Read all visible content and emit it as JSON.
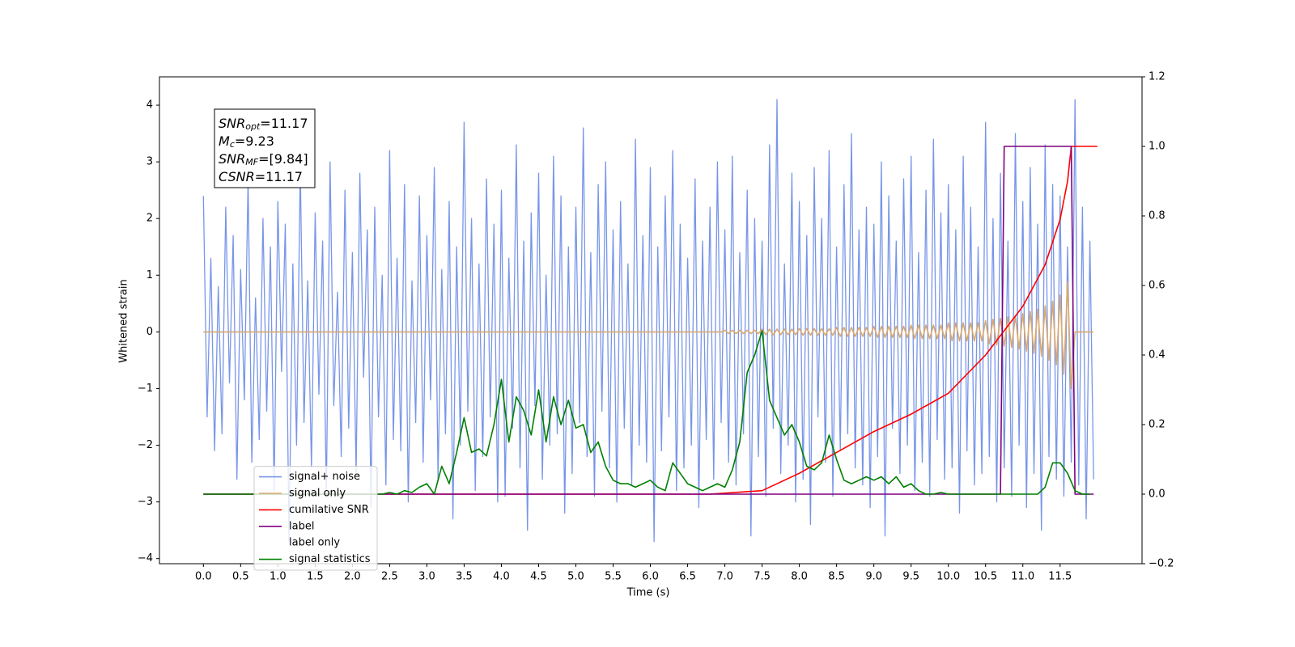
{
  "chart_data": {
    "type": "line",
    "xlabel": "Time (s)",
    "ylabel": "Whitened strain",
    "xlim": [
      -0.59,
      12.6
    ],
    "ylim": [
      -4.09,
      4.5
    ],
    "y2lim": [
      -0.2,
      1.2
    ],
    "xticks": [
      {
        "value": 0,
        "label": "0.0"
      },
      {
        "value": 0.5,
        "label": "0.5"
      },
      {
        "value": 1,
        "label": "1.0"
      },
      {
        "value": 1.5,
        "label": "1.5"
      },
      {
        "value": 2,
        "label": "2.0"
      },
      {
        "value": 2.5,
        "label": "2.5"
      },
      {
        "value": 3,
        "label": "3.0"
      },
      {
        "value": 3.5,
        "label": "3.5"
      },
      {
        "value": 4,
        "label": "4.0"
      },
      {
        "value": 4.5,
        "label": "4.5"
      },
      {
        "value": 5,
        "label": "5.0"
      },
      {
        "value": 5.5,
        "label": "5.5"
      },
      {
        "value": 6,
        "label": "6.0"
      },
      {
        "value": 6.5,
        "label": "6.5"
      },
      {
        "value": 7,
        "label": "7.0"
      },
      {
        "value": 7.5,
        "label": "7.5"
      },
      {
        "value": 8,
        "label": "8.0"
      },
      {
        "value": 8.5,
        "label": "8.5"
      },
      {
        "value": 9,
        "label": "9.0"
      },
      {
        "value": 9.5,
        "label": "9.5"
      },
      {
        "value": 10,
        "label": "10.0"
      },
      {
        "value": 10.5,
        "label": "10.5"
      },
      {
        "value": 11,
        "label": "11.0"
      },
      {
        "value": 11.5,
        "label": "11.5"
      }
    ],
    "yticks": [
      {
        "value": -4,
        "label": "−4"
      },
      {
        "value": -3,
        "label": "−3"
      },
      {
        "value": -2,
        "label": "−2"
      },
      {
        "value": -1,
        "label": "−1"
      },
      0,
      1,
      2,
      3,
      4
    ],
    "y2ticks": [
      {
        "value": -0.2,
        "label": "−0.2"
      },
      {
        "value": 0,
        "label": "0.0"
      },
      {
        "value": 0.2,
        "label": "0.2"
      },
      {
        "value": 0.4,
        "label": "0.4"
      },
      {
        "value": 0.6,
        "label": "0.6"
      },
      {
        "value": 0.8,
        "label": "0.8"
      },
      {
        "value": 1,
        "label": "1.0"
      },
      {
        "value": 1.2,
        "label": "1.2"
      }
    ],
    "legend": "lower left",
    "annotation": [
      {
        "name": "SNR",
        "sub": "opt",
        "text": "=11.17"
      },
      {
        "name": "M",
        "sub": "c",
        "text": "=9.23"
      },
      {
        "name": "SNR",
        "sub": "MF",
        "text": "=[9.84]"
      },
      {
        "name": "CSNR",
        "text": "=11.17"
      }
    ],
    "x": [
      0,
      0.05,
      0.1,
      0.15,
      0.2,
      0.25,
      0.3,
      0.35,
      0.4,
      0.45,
      0.5,
      0.55,
      0.6,
      0.65,
      0.7,
      0.75,
      0.8,
      0.85,
      0.9,
      0.95,
      1,
      1.05,
      1.1,
      1.15,
      1.2,
      1.25,
      1.3,
      1.35,
      1.4,
      1.45,
      1.5,
      1.55,
      1.6,
      1.65,
      1.7,
      1.75,
      1.8,
      1.85,
      1.9,
      1.95,
      2,
      2.05,
      2.1,
      2.15,
      2.2,
      2.25,
      2.3,
      2.35,
      2.4,
      2.45,
      2.5,
      2.55,
      2.6,
      2.65,
      2.7,
      2.75,
      2.8,
      2.85,
      2.9,
      2.95,
      3,
      3.05,
      3.1,
      3.15,
      3.2,
      3.25,
      3.3,
      3.35,
      3.4,
      3.45,
      3.5,
      3.55,
      3.6,
      3.65,
      3.7,
      3.75,
      3.8,
      3.85,
      3.9,
      3.95,
      4,
      4.05,
      4.1,
      4.15,
      4.2,
      4.25,
      4.3,
      4.35,
      4.4,
      4.45,
      4.5,
      4.55,
      4.6,
      4.65,
      4.7,
      4.75,
      4.8,
      4.85,
      4.9,
      4.95,
      5,
      5.05,
      5.1,
      5.15,
      5.2,
      5.25,
      5.3,
      5.35,
      5.4,
      5.45,
      5.5,
      5.55,
      5.6,
      5.65,
      5.7,
      5.75,
      5.8,
      5.85,
      5.9,
      5.95,
      6,
      6.05,
      6.1,
      6.15,
      6.2,
      6.25,
      6.3,
      6.35,
      6.4,
      6.45,
      6.5,
      6.55,
      6.6,
      6.65,
      6.7,
      6.75,
      6.8,
      6.85,
      6.9,
      6.95,
      7,
      7.05,
      7.1,
      7.15,
      7.2,
      7.25,
      7.3,
      7.35,
      7.4,
      7.45,
      7.5,
      7.55,
      7.6,
      7.65,
      7.7,
      7.75,
      7.8,
      7.85,
      7.9,
      7.95,
      8,
      8.05,
      8.1,
      8.15,
      8.2,
      8.25,
      8.3,
      8.35,
      8.4,
      8.45,
      8.5,
      8.55,
      8.6,
      8.65,
      8.7,
      8.75,
      8.8,
      8.85,
      8.9,
      8.95,
      9,
      9.05,
      9.1,
      9.15,
      9.2,
      9.25,
      9.3,
      9.35,
      9.4,
      9.45,
      9.5,
      9.55,
      9.6,
      9.65,
      9.7,
      9.75,
      9.8,
      9.85,
      9.9,
      9.95,
      10,
      10.05,
      10.1,
      10.15,
      10.2,
      10.25,
      10.3,
      10.35,
      10.4,
      10.45,
      10.5,
      10.55,
      10.6,
      10.65,
      10.7,
      10.75,
      10.8,
      10.85,
      10.9,
      10.95,
      11,
      11.05,
      11.1,
      11.15,
      11.2,
      11.25,
      11.3,
      11.35,
      11.4,
      11.45,
      11.5,
      11.55,
      11.6,
      11.65,
      11.7,
      11.75,
      11.8,
      11.85,
      11.9,
      11.95
    ],
    "series": [
      {
        "name": "signal+ noise",
        "color": "#7895e8",
        "values": [
          2.4,
          -1.5,
          1.3,
          -2.1,
          0.8,
          -1.8,
          2.2,
          -0.9,
          1.7,
          -2.6,
          1.1,
          -1.2,
          2.7,
          -2.3,
          0.6,
          -1.9,
          2.0,
          -1.4,
          1.5,
          -2.8,
          2.3,
          -0.7,
          1.9,
          -3.7,
          1.2,
          -2.0,
          2.9,
          -1.6,
          0.9,
          -2.4,
          2.1,
          -1.1,
          1.6,
          -2.9,
          3.0,
          -1.3,
          0.7,
          -2.2,
          2.5,
          -1.7,
          1.4,
          -2.5,
          2.8,
          -0.8,
          1.8,
          -3.1,
          2.2,
          -1.5,
          1.0,
          -2.7,
          3.2,
          -1.9,
          1.3,
          -2.1,
          2.6,
          -3.0,
          0.9,
          -1.6,
          2.4,
          -2.3,
          1.7,
          -1.2,
          2.9,
          -2.6,
          1.1,
          -1.8,
          2.3,
          -3.3,
          1.5,
          -2.0,
          3.7,
          -1.4,
          2.0,
          -2.8,
          1.2,
          -2.2,
          2.7,
          -1.5,
          1.9,
          -3.0,
          2.5,
          -2.9,
          1.3,
          -1.7,
          3.3,
          -2.4,
          1.6,
          -3.5,
          2.1,
          -1.3,
          2.8,
          -2.6,
          1.0,
          -2.0,
          3.1,
          -1.8,
          2.4,
          -3.2,
          1.5,
          -2.5,
          2.2,
          -1.6,
          3.6,
          -2.2,
          1.4,
          -2.9,
          2.6,
          -1.4,
          3.0,
          -2.4,
          1.8,
          -3.0,
          2.3,
          -1.7,
          1.2,
          -2.7,
          3.4,
          -2.0,
          1.7,
          -2.3,
          2.9,
          -3.7,
          1.5,
          -2.1,
          2.4,
          -1.5,
          3.2,
          -2.8,
          1.9,
          -2.4,
          1.3,
          -2.0,
          2.7,
          -3.1,
          1.6,
          -1.9,
          2.2,
          -2.6,
          3.0,
          -1.6,
          1.8,
          -2.3,
          3.1,
          -2.7,
          1.4,
          -1.8,
          2.5,
          -3.6,
          2.0,
          -2.2,
          1.6,
          -2.9,
          3.3,
          -1.7,
          4.1,
          -2.5,
          1.2,
          -2.0,
          2.8,
          -3.0,
          2.3,
          -2.6,
          1.7,
          -3.4,
          2.9,
          -1.5,
          2.0,
          -2.3,
          3.2,
          -2.9,
          1.5,
          -2.1,
          2.6,
          -1.8,
          3.5,
          -2.4,
          1.8,
          -2.7,
          2.2,
          -3.1,
          1.9,
          -2.2,
          3.0,
          -3.6,
          2.4,
          -1.7,
          1.6,
          -2.5,
          2.7,
          -2.0,
          3.1,
          -2.8,
          1.4,
          -2.3,
          2.5,
          -2.9,
          3.4,
          -1.9,
          2.1,
          -2.6,
          2.6,
          -2.4,
          1.8,
          -3.2,
          3.1,
          -2.1,
          2.2,
          -2.7,
          1.5,
          -2.5,
          3.7,
          -2.2,
          2.0,
          -3.0,
          2.8,
          -2.4,
          1.6,
          -2.9,
          3.5,
          -2.0,
          2.3,
          -3.1,
          2.9,
          -2.5,
          1.9,
          -3.5,
          3.3,
          -2.2,
          2.6,
          -2.6,
          2.4,
          -2.9,
          1.5,
          -2.3,
          4.1,
          -2.7,
          2.2,
          -3.3,
          1.6,
          -2.6
        ]
      },
      {
        "name": "signal only",
        "color": "#d9a86f",
        "values": [
          0,
          0,
          0,
          0,
          0,
          0,
          0,
          0,
          0,
          0,
          0,
          0,
          0,
          0,
          0,
          0,
          0,
          0,
          0,
          0,
          0,
          0,
          0,
          0,
          0,
          0,
          0,
          0,
          0,
          0,
          0,
          0,
          0,
          0,
          0,
          0,
          0,
          0,
          0,
          0,
          0,
          0,
          0,
          0,
          0,
          0,
          0,
          0,
          0,
          0,
          0,
          0,
          0,
          0,
          0,
          0,
          0,
          0,
          0,
          0,
          0,
          0,
          0,
          0,
          0,
          0,
          0,
          0,
          0,
          0,
          0,
          0,
          0,
          0,
          0,
          0,
          0,
          0,
          0,
          0,
          0,
          0,
          0,
          0,
          0,
          0,
          0,
          0,
          0,
          0,
          0,
          0,
          0,
          0,
          0,
          0,
          0,
          0,
          0,
          0,
          0,
          0,
          0,
          0,
          0,
          0,
          0,
          0,
          0,
          0,
          0,
          0,
          0,
          0,
          0,
          0,
          0,
          0,
          0,
          0,
          0,
          0,
          0,
          0,
          0,
          0,
          0,
          0,
          0,
          0,
          0,
          0,
          0,
          0,
          0,
          0,
          0,
          0,
          0,
          0,
          0.03,
          -0.03,
          0.03,
          -0.03,
          0.03,
          -0.03,
          0.03,
          -0.03,
          0.03,
          -0.03,
          0.05,
          -0.05,
          0.05,
          -0.05,
          0.05,
          -0.05,
          0.05,
          -0.05,
          0.05,
          -0.05,
          0.06,
          -0.06,
          0.06,
          -0.06,
          0.06,
          -0.06,
          0.06,
          -0.06,
          0.06,
          -0.06,
          0.08,
          -0.08,
          0.08,
          -0.08,
          0.08,
          -0.08,
          0.08,
          -0.08,
          0.08,
          -0.08,
          0.1,
          -0.1,
          0.1,
          -0.1,
          0.1,
          -0.1,
          0.1,
          -0.1,
          0.1,
          -0.1,
          0.12,
          -0.12,
          0.12,
          -0.12,
          0.12,
          -0.12,
          0.12,
          -0.12,
          0.12,
          -0.12,
          0.16,
          -0.16,
          0.16,
          -0.16,
          0.16,
          -0.16,
          0.16,
          -0.16,
          0.16,
          -0.16,
          0.2,
          -0.21,
          0.22,
          -0.23,
          0.24,
          -0.25,
          0.26,
          -0.27,
          0.28,
          -0.3,
          0.32,
          -0.34,
          0.36,
          -0.38,
          0.4,
          -0.43,
          0.46,
          -0.5,
          0.54,
          -0.58,
          0.65,
          -0.75,
          0.88,
          -1.0,
          0,
          0,
          0,
          0,
          0,
          0
        ]
      },
      {
        "name": "cumilative SNR",
        "color": "#ff0000",
        "axis": "y2",
        "x": [
          0,
          6.8,
          7.5,
          8,
          8.5,
          9,
          9.5,
          10,
          10.5,
          11,
          11.3,
          11.5,
          11.6,
          11.65,
          12.0
        ],
        "values": [
          0,
          0,
          0.01,
          0.06,
          0.12,
          0.18,
          0.23,
          0.29,
          0.4,
          0.54,
          0.66,
          0.79,
          0.9,
          1.0,
          1.0
        ]
      },
      {
        "name": "label",
        "color": "#800080",
        "axis": "y2",
        "x": [
          0,
          10.7,
          10.75,
          11.65,
          11.7,
          11.95
        ],
        "values": [
          0,
          0,
          1,
          1,
          0,
          0
        ]
      },
      {
        "name": "label only",
        "color": "#ffffff"
      },
      {
        "name": "signal statistics",
        "color": "#008000",
        "axis": "y2",
        "x": [
          0,
          2.4,
          2.5,
          2.6,
          2.7,
          2.8,
          2.9,
          3,
          3.1,
          3.2,
          3.3,
          3.4,
          3.5,
          3.6,
          3.7,
          3.8,
          3.9,
          4,
          4.1,
          4.2,
          4.3,
          4.4,
          4.5,
          4.6,
          4.7,
          4.8,
          4.9,
          5,
          5.1,
          5.2,
          5.3,
          5.4,
          5.5,
          5.6,
          5.7,
          5.8,
          5.9,
          6,
          6.1,
          6.2,
          6.3,
          6.4,
          6.5,
          6.6,
          6.7,
          6.8,
          6.9,
          7,
          7.1,
          7.2,
          7.3,
          7.4,
          7.5,
          7.6,
          7.7,
          7.8,
          7.9,
          8,
          8.1,
          8.2,
          8.3,
          8.4,
          8.5,
          8.6,
          8.7,
          8.8,
          8.9,
          9,
          9.1,
          9.2,
          9.3,
          9.4,
          9.5,
          9.6,
          9.7,
          9.8,
          9.9,
          10,
          11.2,
          11.3,
          11.4,
          11.5,
          11.6,
          11.7,
          11.8,
          11.9
        ],
        "values": [
          0,
          0,
          0.005,
          0,
          0.01,
          0.005,
          0.02,
          0.03,
          0,
          0.08,
          0.03,
          0.12,
          0.22,
          0.12,
          0.13,
          0.11,
          0.2,
          0.33,
          0.15,
          0.28,
          0.24,
          0.17,
          0.3,
          0.15,
          0.28,
          0.2,
          0.27,
          0.19,
          0.2,
          0.12,
          0.15,
          0.08,
          0.04,
          0.03,
          0.03,
          0.02,
          0.03,
          0.04,
          0.02,
          0.01,
          0.09,
          0.06,
          0.03,
          0.02,
          0.01,
          0.02,
          0.03,
          0.02,
          0.07,
          0.15,
          0.35,
          0.4,
          0.47,
          0.27,
          0.22,
          0.17,
          0.2,
          0.15,
          0.08,
          0.07,
          0.09,
          0.17,
          0.1,
          0.04,
          0.03,
          0.04,
          0.05,
          0.04,
          0.05,
          0.03,
          0.05,
          0.02,
          0.03,
          0.01,
          0,
          0,
          0.005,
          0,
          0,
          0.02,
          0.09,
          0.09,
          0.06,
          0.01,
          0,
          0
        ]
      }
    ]
  }
}
